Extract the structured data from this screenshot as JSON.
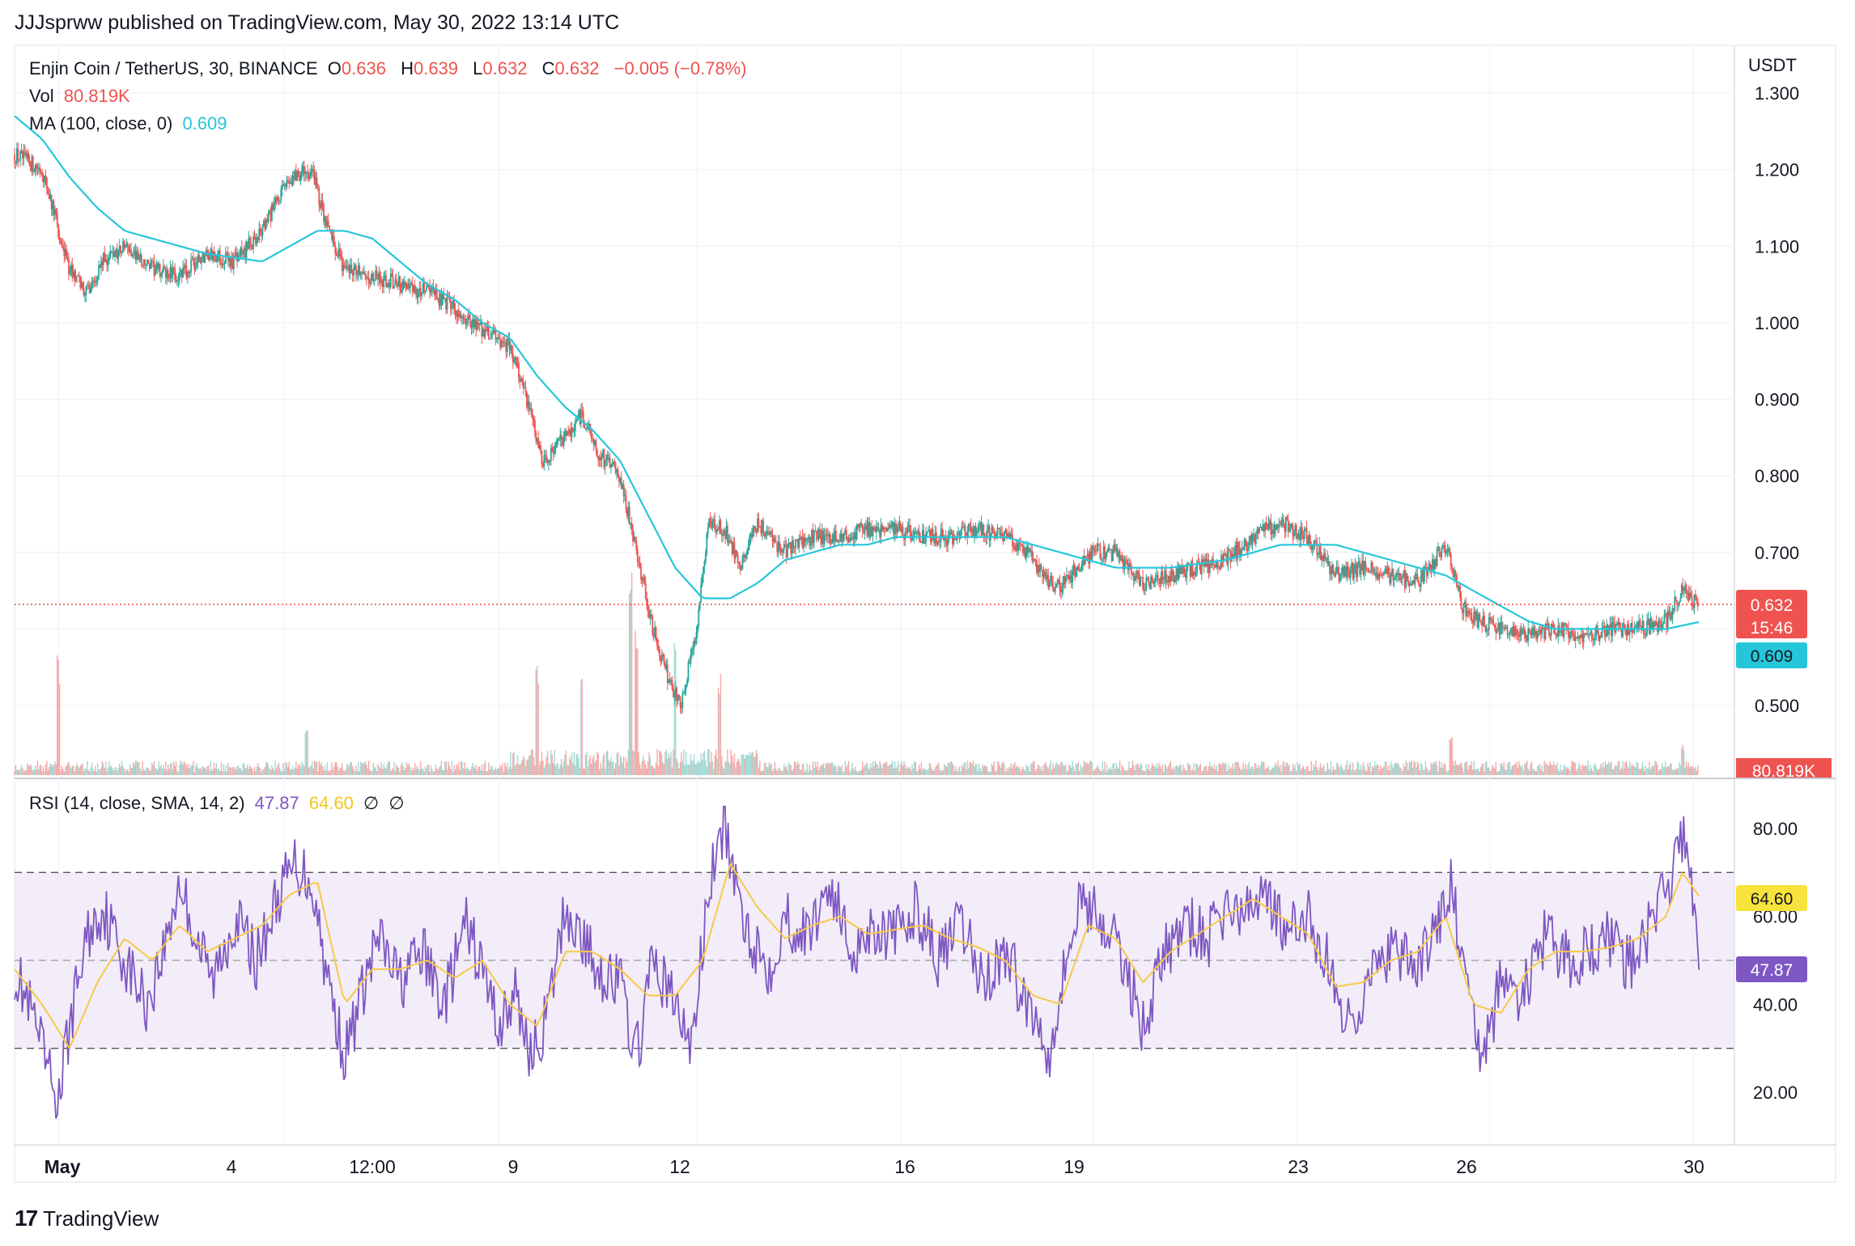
{
  "header": {
    "text": "JJJsprww published on TradingView.com, May 30, 2022 13:14 UTC"
  },
  "legend": {
    "symbol": "Enjin Coin / TetherUS, 30, BINANCE",
    "o_label": "O",
    "o_value": "0.636",
    "h_label": "H",
    "h_value": "0.639",
    "l_label": "L",
    "l_value": "0.632",
    "c_label": "C",
    "c_value": "0.632",
    "change": "−0.005 (−0.78%)",
    "vol_label": "Vol",
    "vol_value": "80.819K",
    "ma_label": "MA (100, close, 0)",
    "ma_value": "0.609",
    "rsi_label": "RSI (14, close, SMA, 14, 2)",
    "rsi_value": "47.87",
    "rsi_sma_value": "64.60",
    "rsi_extra1": "∅",
    "rsi_extra2": "∅"
  },
  "price_axis": {
    "unit": "USDT",
    "ticks": [
      "1.300",
      "1.200",
      "1.100",
      "1.000",
      "0.900",
      "0.800",
      "0.700",
      "0.500"
    ],
    "last_price_tag": "0.632",
    "countdown_tag": "15:46",
    "ma_tag": "0.609",
    "volume_tag": "80.819K"
  },
  "rsi_axis": {
    "ticks": [
      "80.00",
      "60.00",
      "40.00",
      "20.00"
    ],
    "sma_tag": "64.60",
    "rsi_tag": "47.87"
  },
  "time_axis": {
    "labels": [
      "May",
      "4",
      "12:00",
      "9",
      "12",
      "16",
      "19",
      "23",
      "26",
      "30"
    ]
  },
  "footer": {
    "brand": "TradingView"
  },
  "colors": {
    "up": "#26a69a",
    "down": "#ef5350",
    "ma": "#26c6da",
    "rsi": "#7e57c2",
    "rsi_sma": "#f7c948",
    "band": "#ede7f6",
    "grid": "#f0f3fa"
  },
  "chart_data": [
    {
      "type": "candlestick",
      "title": "Enjin Coin / TetherUS, 30, BINANCE",
      "x_unit": "day index (May 1 = 0, 30-minute bars)",
      "ylim": [
        0.45,
        1.32
      ],
      "y_unit": "USDT",
      "close_path": [
        [
          0.0,
          1.22
        ],
        [
          0.5,
          1.2
        ],
        [
          1.0,
          1.07
        ],
        [
          1.3,
          1.04
        ],
        [
          1.6,
          1.08
        ],
        [
          2.0,
          1.1
        ],
        [
          2.5,
          1.07
        ],
        [
          3.0,
          1.06
        ],
        [
          3.5,
          1.09
        ],
        [
          4.0,
          1.08
        ],
        [
          4.5,
          1.12
        ],
        [
          5.0,
          1.19
        ],
        [
          5.4,
          1.2
        ],
        [
          5.7,
          1.12
        ],
        [
          6.0,
          1.07
        ],
        [
          6.5,
          1.06
        ],
        [
          7.0,
          1.05
        ],
        [
          7.5,
          1.04
        ],
        [
          8.0,
          1.02
        ],
        [
          8.5,
          0.99
        ],
        [
          9.0,
          0.97
        ],
        [
          9.3,
          0.9
        ],
        [
          9.6,
          0.82
        ],
        [
          10.0,
          0.85
        ],
        [
          10.3,
          0.88
        ],
        [
          10.6,
          0.83
        ],
        [
          11.0,
          0.8
        ],
        [
          11.3,
          0.7
        ],
        [
          11.6,
          0.6
        ],
        [
          11.9,
          0.53
        ],
        [
          12.1,
          0.5
        ],
        [
          12.4,
          0.6
        ],
        [
          12.6,
          0.74
        ],
        [
          12.9,
          0.73
        ],
        [
          13.2,
          0.68
        ],
        [
          13.5,
          0.74
        ],
        [
          14.0,
          0.7
        ],
        [
          14.5,
          0.72
        ],
        [
          15.0,
          0.72
        ],
        [
          15.5,
          0.73
        ],
        [
          16.0,
          0.73
        ],
        [
          16.5,
          0.72
        ],
        [
          17.0,
          0.72
        ],
        [
          17.5,
          0.73
        ],
        [
          18.0,
          0.72
        ],
        [
          18.5,
          0.69
        ],
        [
          18.9,
          0.65
        ],
        [
          19.2,
          0.67
        ],
        [
          19.6,
          0.7
        ],
        [
          20.0,
          0.7
        ],
        [
          20.5,
          0.66
        ],
        [
          21.0,
          0.67
        ],
        [
          21.5,
          0.68
        ],
        [
          22.0,
          0.69
        ],
        [
          22.5,
          0.72
        ],
        [
          23.0,
          0.74
        ],
        [
          23.5,
          0.72
        ],
        [
          24.0,
          0.67
        ],
        [
          24.5,
          0.68
        ],
        [
          25.0,
          0.67
        ],
        [
          25.5,
          0.66
        ],
        [
          26.0,
          0.71
        ],
        [
          26.3,
          0.63
        ],
        [
          26.6,
          0.61
        ],
        [
          27.0,
          0.6
        ],
        [
          27.5,
          0.59
        ],
        [
          28.0,
          0.6
        ],
        [
          28.5,
          0.59
        ],
        [
          29.0,
          0.6
        ],
        [
          29.5,
          0.6
        ],
        [
          30.0,
          0.61
        ],
        [
          30.3,
          0.65
        ],
        [
          30.6,
          0.632
        ]
      ],
      "ma100_path": [
        [
          0.0,
          1.27
        ],
        [
          0.5,
          1.24
        ],
        [
          1.0,
          1.19
        ],
        [
          1.5,
          1.15
        ],
        [
          2.0,
          1.12
        ],
        [
          2.5,
          1.11
        ],
        [
          3.0,
          1.1
        ],
        [
          3.5,
          1.09
        ],
        [
          4.0,
          1.085
        ],
        [
          4.5,
          1.08
        ],
        [
          5.0,
          1.1
        ],
        [
          5.5,
          1.12
        ],
        [
          6.0,
          1.12
        ],
        [
          6.5,
          1.11
        ],
        [
          7.0,
          1.08
        ],
        [
          7.5,
          1.05
        ],
        [
          8.0,
          1.03
        ],
        [
          8.5,
          1.0
        ],
        [
          9.0,
          0.98
        ],
        [
          9.5,
          0.93
        ],
        [
          10.0,
          0.89
        ],
        [
          10.5,
          0.86
        ],
        [
          11.0,
          0.82
        ],
        [
          11.5,
          0.75
        ],
        [
          12.0,
          0.68
        ],
        [
          12.5,
          0.64
        ],
        [
          13.0,
          0.64
        ],
        [
          13.5,
          0.66
        ],
        [
          14.0,
          0.69
        ],
        [
          14.5,
          0.7
        ],
        [
          15.0,
          0.71
        ],
        [
          15.5,
          0.71
        ],
        [
          16.0,
          0.72
        ],
        [
          17.0,
          0.72
        ],
        [
          18.0,
          0.72
        ],
        [
          18.5,
          0.71
        ],
        [
          19.0,
          0.7
        ],
        [
          19.5,
          0.69
        ],
        [
          20.0,
          0.68
        ],
        [
          21.0,
          0.68
        ],
        [
          22.0,
          0.69
        ],
        [
          22.5,
          0.7
        ],
        [
          23.0,
          0.71
        ],
        [
          23.5,
          0.71
        ],
        [
          24.0,
          0.71
        ],
        [
          24.5,
          0.7
        ],
        [
          25.0,
          0.69
        ],
        [
          25.5,
          0.68
        ],
        [
          26.0,
          0.67
        ],
        [
          26.5,
          0.65
        ],
        [
          27.0,
          0.63
        ],
        [
          27.5,
          0.61
        ],
        [
          28.0,
          0.6
        ],
        [
          28.5,
          0.6
        ],
        [
          29.0,
          0.6
        ],
        [
          29.5,
          0.6
        ],
        [
          30.0,
          0.6
        ],
        [
          30.6,
          0.609
        ]
      ],
      "volume_spikes": [
        [
          0.8,
          1.0
        ],
        [
          11.2,
          0.9
        ],
        [
          11.3,
          0.7
        ],
        [
          12.0,
          0.6
        ],
        [
          9.5,
          0.5
        ],
        [
          12.8,
          0.45
        ],
        [
          26.1,
          0.35
        ],
        [
          5.3,
          0.45
        ],
        [
          10.3,
          0.5
        ],
        [
          30.3,
          0.25
        ]
      ],
      "last_price": 0.632,
      "ma_value": 0.609,
      "volume_last": "80.819K"
    },
    {
      "type": "line",
      "title": "RSI (14, close, SMA, 14, 2)",
      "ylim": [
        10,
        90
      ],
      "bands": [
        30,
        50,
        70
      ],
      "rsi_path": [
        [
          0.0,
          48
        ],
        [
          0.3,
          38
        ],
        [
          0.6,
          25
        ],
        [
          0.8,
          18
        ],
        [
          1.0,
          35
        ],
        [
          1.3,
          55
        ],
        [
          1.6,
          62
        ],
        [
          2.0,
          50
        ],
        [
          2.4,
          40
        ],
        [
          2.7,
          52
        ],
        [
          3.0,
          68
        ],
        [
          3.3,
          55
        ],
        [
          3.6,
          45
        ],
        [
          4.0,
          60
        ],
        [
          4.4,
          50
        ],
        [
          4.8,
          65
        ],
        [
          5.1,
          72
        ],
        [
          5.4,
          68
        ],
        [
          5.7,
          45
        ],
        [
          6.0,
          28
        ],
        [
          6.3,
          42
        ],
        [
          6.6,
          55
        ],
        [
          7.0,
          45
        ],
        [
          7.4,
          52
        ],
        [
          7.8,
          40
        ],
        [
          8.2,
          58
        ],
        [
          8.5,
          48
        ],
        [
          8.8,
          35
        ],
        [
          9.1,
          42
        ],
        [
          9.4,
          28
        ],
        [
          9.7,
          38
        ],
        [
          10.0,
          62
        ],
        [
          10.3,
          55
        ],
        [
          10.6,
          48
        ],
        [
          11.0,
          45
        ],
        [
          11.3,
          28
        ],
        [
          11.6,
          50
        ],
        [
          12.0,
          40
        ],
        [
          12.3,
          30
        ],
        [
          12.6,
          65
        ],
        [
          12.9,
          82
        ],
        [
          13.1,
          65
        ],
        [
          13.4,
          55
        ],
        [
          13.7,
          48
        ],
        [
          14.0,
          60
        ],
        [
          14.4,
          55
        ],
        [
          14.8,
          68
        ],
        [
          15.2,
          52
        ],
        [
          15.6,
          58
        ],
        [
          16.0,
          55
        ],
        [
          16.4,
          62
        ],
        [
          16.8,
          50
        ],
        [
          17.2,
          58
        ],
        [
          17.6,
          45
        ],
        [
          18.0,
          52
        ],
        [
          18.4,
          40
        ],
        [
          18.8,
          30
        ],
        [
          19.1,
          50
        ],
        [
          19.4,
          65
        ],
        [
          19.8,
          58
        ],
        [
          20.2,
          48
        ],
        [
          20.5,
          35
        ],
        [
          20.9,
          52
        ],
        [
          21.3,
          58
        ],
        [
          21.7,
          55
        ],
        [
          22.0,
          62
        ],
        [
          22.4,
          60
        ],
        [
          22.7,
          68
        ],
        [
          23.1,
          55
        ],
        [
          23.5,
          60
        ],
        [
          23.9,
          48
        ],
        [
          24.2,
          35
        ],
        [
          24.6,
          45
        ],
        [
          25.0,
          52
        ],
        [
          25.4,
          48
        ],
        [
          25.8,
          55
        ],
        [
          26.1,
          68
        ],
        [
          26.4,
          40
        ],
        [
          26.7,
          28
        ],
        [
          27.0,
          45
        ],
        [
          27.4,
          42
        ],
        [
          27.8,
          55
        ],
        [
          28.2,
          50
        ],
        [
          28.6,
          52
        ],
        [
          29.0,
          55
        ],
        [
          29.4,
          48
        ],
        [
          29.8,
          60
        ],
        [
          30.1,
          70
        ],
        [
          30.3,
          78
        ],
        [
          30.5,
          64
        ],
        [
          30.6,
          47.87
        ]
      ],
      "sma_path": [
        [
          0.0,
          48
        ],
        [
          0.5,
          40
        ],
        [
          1.0,
          30
        ],
        [
          1.5,
          45
        ],
        [
          2.0,
          55
        ],
        [
          2.5,
          50
        ],
        [
          3.0,
          58
        ],
        [
          3.5,
          52
        ],
        [
          4.0,
          55
        ],
        [
          4.5,
          58
        ],
        [
          5.0,
          65
        ],
        [
          5.5,
          68
        ],
        [
          6.0,
          40
        ],
        [
          6.5,
          48
        ],
        [
          7.0,
          48
        ],
        [
          7.5,
          50
        ],
        [
          8.0,
          46
        ],
        [
          8.5,
          50
        ],
        [
          9.0,
          40
        ],
        [
          9.5,
          35
        ],
        [
          10.0,
          52
        ],
        [
          10.5,
          52
        ],
        [
          11.0,
          48
        ],
        [
          11.5,
          42
        ],
        [
          12.0,
          42
        ],
        [
          12.5,
          50
        ],
        [
          13.0,
          72
        ],
        [
          13.5,
          62
        ],
        [
          14.0,
          55
        ],
        [
          14.5,
          58
        ],
        [
          15.0,
          60
        ],
        [
          15.5,
          56
        ],
        [
          16.0,
          57
        ],
        [
          16.5,
          58
        ],
        [
          17.0,
          55
        ],
        [
          17.5,
          53
        ],
        [
          18.0,
          50
        ],
        [
          18.5,
          42
        ],
        [
          19.0,
          40
        ],
        [
          19.5,
          58
        ],
        [
          20.0,
          55
        ],
        [
          20.5,
          45
        ],
        [
          21.0,
          52
        ],
        [
          21.5,
          56
        ],
        [
          22.0,
          60
        ],
        [
          22.5,
          64
        ],
        [
          23.0,
          60
        ],
        [
          23.5,
          56
        ],
        [
          24.0,
          44
        ],
        [
          24.5,
          45
        ],
        [
          25.0,
          50
        ],
        [
          25.5,
          52
        ],
        [
          26.0,
          60
        ],
        [
          26.5,
          40
        ],
        [
          27.0,
          38
        ],
        [
          27.5,
          48
        ],
        [
          28.0,
          52
        ],
        [
          28.5,
          52
        ],
        [
          29.0,
          53
        ],
        [
          29.5,
          55
        ],
        [
          30.0,
          60
        ],
        [
          30.3,
          70
        ],
        [
          30.6,
          64.6
        ]
      ],
      "rsi_value": 47.87,
      "sma_value": 64.6
    }
  ]
}
